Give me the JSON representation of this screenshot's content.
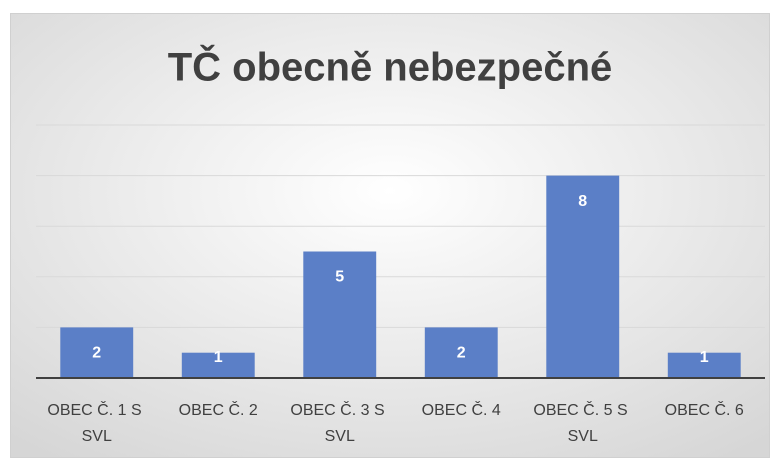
{
  "chart_data": {
    "type": "bar",
    "title": "TČ obecně nebezpečné",
    "categories": [
      "OBEC Č. 1 S SVL",
      "OBEC Č. 2",
      "OBEC Č. 3 S SVL",
      "OBEC Č. 4",
      "OBEC Č. 5 S SVL",
      "OBEC Č. 6"
    ],
    "values": [
      2,
      1,
      5,
      2,
      8,
      1
    ],
    "color": "#5b7fc7",
    "ylim": [
      0,
      10
    ],
    "yticks": [
      0,
      2,
      4,
      6,
      8,
      10
    ],
    "grid": true
  }
}
